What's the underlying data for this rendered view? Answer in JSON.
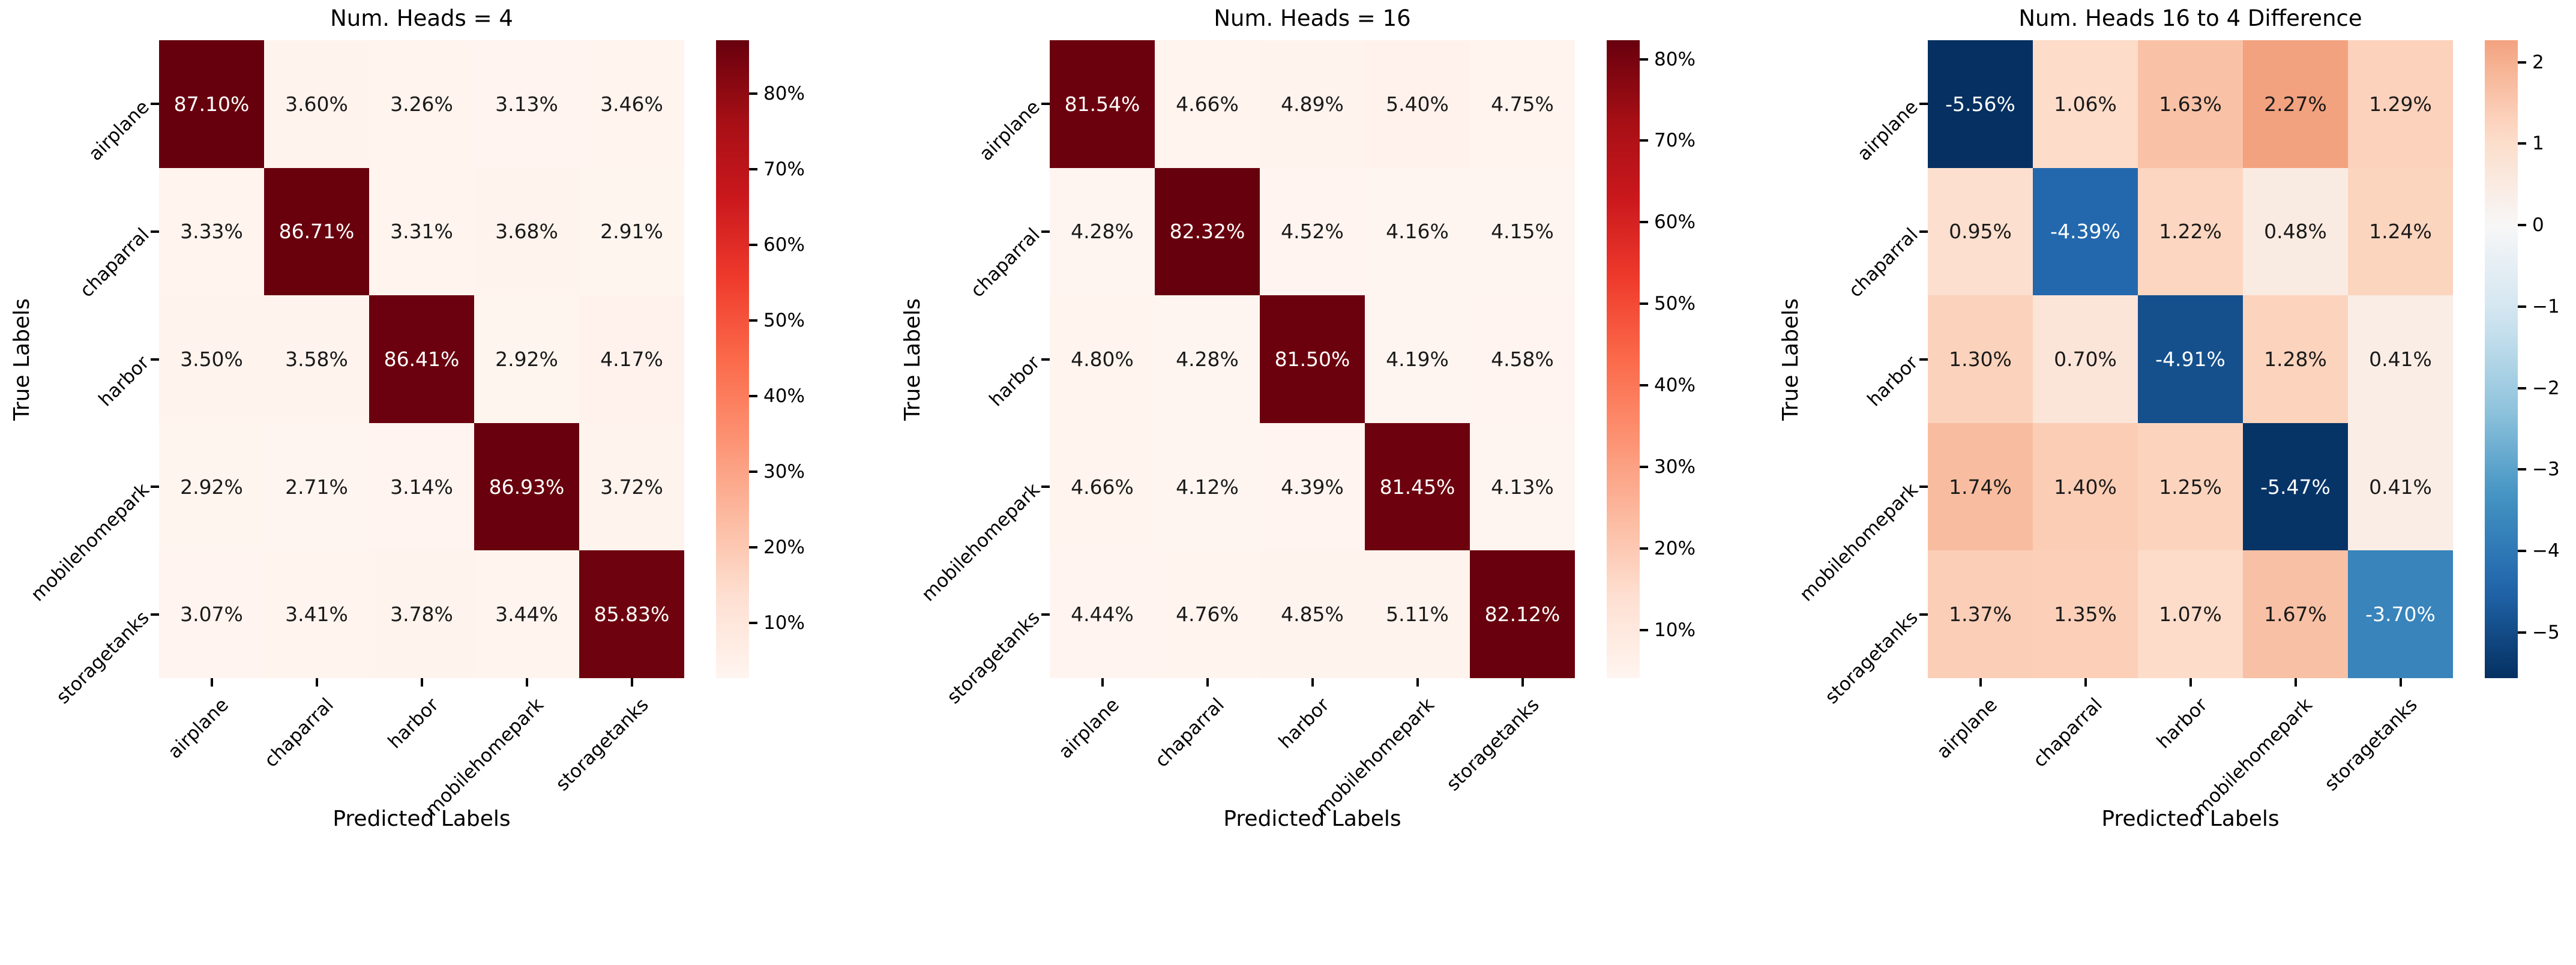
{
  "shared": {
    "y_axis_label": "True Labels",
    "x_axis_label": "Predicted Labels",
    "class_labels": [
      "airplane",
      "chaparral",
      "harbor",
      "mobilehomepark",
      "storagetanks"
    ]
  },
  "chart_data": [
    {
      "type": "heatmap",
      "title": "Num. Heads = 4",
      "xlabel": "Predicted Labels",
      "ylabel": "True Labels",
      "x_labels": [
        "airplane",
        "chaparral",
        "harbor",
        "mobilehomepark",
        "storagetanks"
      ],
      "y_labels": [
        "airplane",
        "chaparral",
        "harbor",
        "mobilehomepark",
        "storagetanks"
      ],
      "values_pct": [
        [
          87.1,
          3.6,
          3.26,
          3.13,
          3.46
        ],
        [
          3.33,
          86.71,
          3.31,
          3.68,
          2.91
        ],
        [
          3.5,
          3.58,
          86.41,
          2.92,
          4.17
        ],
        [
          2.92,
          2.71,
          3.14,
          86.93,
          3.72
        ],
        [
          3.07,
          3.41,
          3.78,
          3.44,
          85.83
        ]
      ],
      "cell_labels": [
        [
          "87.10%",
          "3.60%",
          "3.26%",
          "3.13%",
          "3.46%"
        ],
        [
          "3.33%",
          "86.71%",
          "3.31%",
          "3.68%",
          "2.91%"
        ],
        [
          "3.50%",
          "3.58%",
          "86.41%",
          "2.92%",
          "4.17%"
        ],
        [
          "2.92%",
          "2.71%",
          "3.14%",
          "86.93%",
          "3.72%"
        ],
        [
          "3.07%",
          "3.41%",
          "3.78%",
          "3.44%",
          "85.83%"
        ]
      ],
      "colormap": "Reds",
      "norm": "linear",
      "vmin": 2.71,
      "vmax": 87.1,
      "colorbar": {
        "tick_values": [
          10,
          20,
          30,
          40,
          50,
          60,
          70,
          80
        ],
        "tick_labels": [
          "10%",
          "20%",
          "30%",
          "40%",
          "50%",
          "60%",
          "70%",
          "80%"
        ]
      }
    },
    {
      "type": "heatmap",
      "title": "Num. Heads = 16",
      "xlabel": "Predicted Labels",
      "ylabel": "True Labels",
      "x_labels": [
        "airplane",
        "chaparral",
        "harbor",
        "mobilehomepark",
        "storagetanks"
      ],
      "y_labels": [
        "airplane",
        "chaparral",
        "harbor",
        "mobilehomepark",
        "storagetanks"
      ],
      "values_pct": [
        [
          81.54,
          4.66,
          4.89,
          5.4,
          4.75
        ],
        [
          4.28,
          82.32,
          4.52,
          4.16,
          4.15
        ],
        [
          4.8,
          4.28,
          81.5,
          4.19,
          4.58
        ],
        [
          4.66,
          4.12,
          4.39,
          81.45,
          4.13
        ],
        [
          4.44,
          4.76,
          4.85,
          5.11,
          82.12
        ]
      ],
      "cell_labels": [
        [
          "81.54%",
          "4.66%",
          "4.89%",
          "5.40%",
          "4.75%"
        ],
        [
          "4.28%",
          "82.32%",
          "4.52%",
          "4.16%",
          "4.15%"
        ],
        [
          "4.80%",
          "4.28%",
          "81.50%",
          "4.19%",
          "4.58%"
        ],
        [
          "4.66%",
          "4.12%",
          "4.39%",
          "81.45%",
          "4.13%"
        ],
        [
          "4.44%",
          "4.76%",
          "4.85%",
          "5.11%",
          "82.12%"
        ]
      ],
      "colormap": "Reds",
      "norm": "linear",
      "vmin": 4.12,
      "vmax": 82.32,
      "colorbar": {
        "tick_values": [
          10,
          20,
          30,
          40,
          50,
          60,
          70,
          80
        ],
        "tick_labels": [
          "10%",
          "20%",
          "30%",
          "40%",
          "50%",
          "60%",
          "70%",
          "80%"
        ]
      }
    },
    {
      "type": "heatmap",
      "title": "Num. Heads 16 to 4 Difference",
      "xlabel": "Predicted Labels",
      "ylabel": "True Labels",
      "x_labels": [
        "airplane",
        "chaparral",
        "harbor",
        "mobilehomepark",
        "storagetanks"
      ],
      "y_labels": [
        "airplane",
        "chaparral",
        "harbor",
        "mobilehomepark",
        "storagetanks"
      ],
      "values_pct": [
        [
          -5.56,
          1.06,
          1.63,
          2.27,
          1.29
        ],
        [
          0.95,
          -4.39,
          1.22,
          0.48,
          1.24
        ],
        [
          1.3,
          0.7,
          -4.91,
          1.28,
          0.41
        ],
        [
          1.74,
          1.4,
          1.25,
          -5.47,
          0.41
        ],
        [
          1.37,
          1.35,
          1.07,
          1.67,
          -3.7
        ]
      ],
      "cell_labels": [
        [
          "-5.56%",
          "1.06%",
          "1.63%",
          "2.27%",
          "1.29%"
        ],
        [
          "0.95%",
          "-4.39%",
          "1.22%",
          "0.48%",
          "1.24%"
        ],
        [
          "1.30%",
          "0.70%",
          "-4.91%",
          "1.28%",
          "0.41%"
        ],
        [
          "1.74%",
          "1.40%",
          "1.25%",
          "-5.47%",
          "0.41%"
        ],
        [
          "1.37%",
          "1.35%",
          "1.07%",
          "1.67%",
          "-3.70%"
        ]
      ],
      "colormap": "RdBu_r",
      "norm": "symmetric_zero",
      "max_abs": 5.56,
      "vmin": -5.56,
      "vmax": 2.27,
      "colorbar": {
        "tick_values": [
          2,
          1,
          0,
          -1,
          -2,
          -3,
          -4,
          -5
        ],
        "tick_labels": [
          "2",
          "1",
          "0",
          "−1",
          "−2",
          "−3",
          "−4",
          "−5"
        ]
      }
    }
  ],
  "colormaps": {
    "Reds": [
      [
        0,
        "#fff5f0"
      ],
      [
        0.125,
        "#fee0d2"
      ],
      [
        0.25,
        "#fcbba1"
      ],
      [
        0.375,
        "#fc9272"
      ],
      [
        0.5,
        "#fb6a4a"
      ],
      [
        0.625,
        "#ef3b2c"
      ],
      [
        0.75,
        "#cb181d"
      ],
      [
        0.875,
        "#a50f15"
      ],
      [
        1,
        "#67000d"
      ]
    ],
    "RdBu_r": [
      [
        0,
        "#053061"
      ],
      [
        0.1,
        "#2166ac"
      ],
      [
        0.2,
        "#4393c3"
      ],
      [
        0.3,
        "#92c5de"
      ],
      [
        0.4,
        "#d1e5f0"
      ],
      [
        0.5,
        "#f7f7f7"
      ],
      [
        0.6,
        "#fddbc7"
      ],
      [
        0.7,
        "#f4a582"
      ],
      [
        0.8,
        "#d6604d"
      ],
      [
        0.9,
        "#b2182b"
      ],
      [
        1,
        "#67001f"
      ]
    ]
  },
  "text_colors": {
    "dark": "#1a1a1a",
    "light": "#ffffff",
    "axis": "#000000"
  }
}
